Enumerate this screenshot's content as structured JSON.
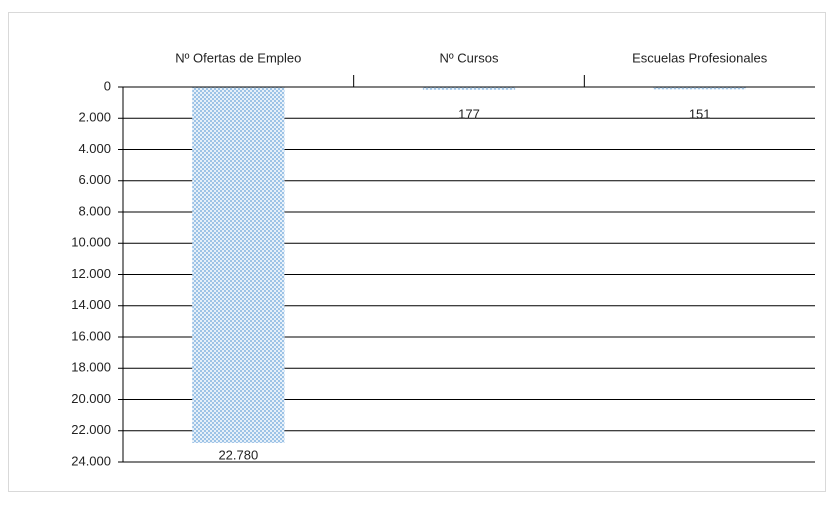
{
  "chart_data": {
    "type": "bar",
    "categories": [
      "Nº Ofertas de Empleo",
      "Nº Cursos",
      "Escuelas Profesionales"
    ],
    "values": [
      22780,
      177,
      151
    ],
    "value_labels": [
      "22.780",
      "177",
      "151"
    ],
    "color": "#9dc3e6",
    "ylim": [
      0,
      24000
    ],
    "yticks": [
      0,
      {
        "value": 2000,
        "label": "2.000"
      },
      {
        "value": 4000,
        "label": "4.000"
      },
      {
        "value": 6000,
        "label": "6.000"
      },
      {
        "value": 8000,
        "label": "8.000"
      },
      {
        "value": 10000,
        "label": "10.000"
      },
      {
        "value": 12000,
        "label": "12.000"
      },
      {
        "value": 14000,
        "label": "14.000"
      },
      {
        "value": 16000,
        "label": "16.000"
      },
      {
        "value": 18000,
        "label": "18.000"
      },
      {
        "value": 20000,
        "label": "20.000"
      },
      {
        "value": 22000,
        "label": "22.000"
      },
      {
        "value": 24000,
        "label": "24.000"
      }
    ],
    "y_inverted": true,
    "grid": true
  }
}
